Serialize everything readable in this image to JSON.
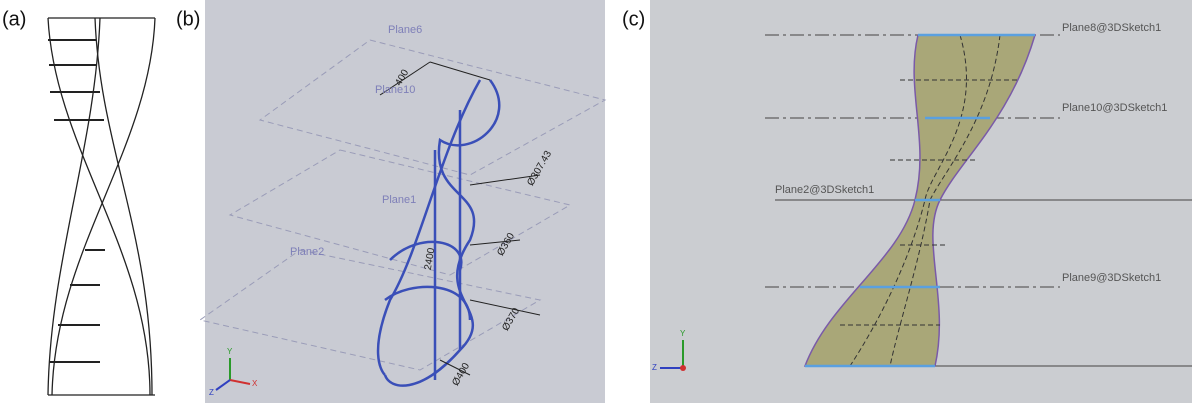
{
  "labels": {
    "a": "(a)",
    "b": "(b)",
    "c": "(c)"
  },
  "panel_b": {
    "planes": [
      "Plane6",
      "Plane10",
      "Plane1",
      "Plane2"
    ],
    "dimensions": [
      "400",
      "Ø307.43",
      "Ø360",
      "Ø370",
      "Ø400",
      "2400"
    ],
    "axes": [
      "Y",
      "X",
      "Z"
    ]
  },
  "panel_c": {
    "planes": [
      "Plane8@3DSketch1",
      "Plane10@3DSketch1",
      "Plane2@3DSketch1",
      "Plane9@3DSketch1"
    ],
    "axes": [
      "Y",
      "Z"
    ]
  }
}
